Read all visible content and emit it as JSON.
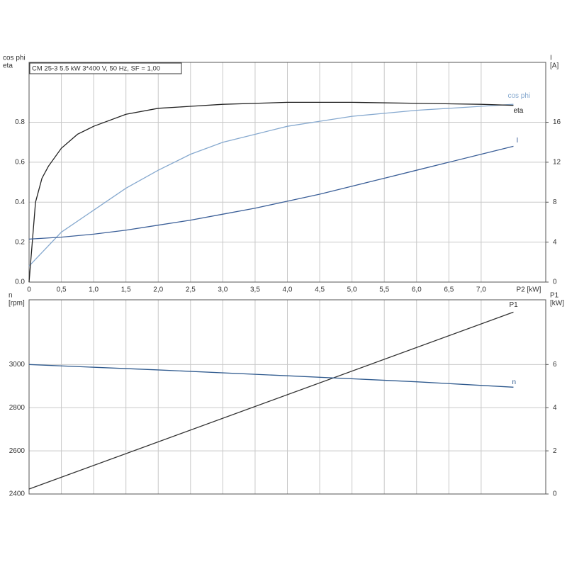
{
  "chart_data": [
    {
      "type": "line",
      "annotation": "CM 25-3   5.5 kW   3*400 V, 50 Hz, SF = 1,00",
      "ylabel_lines": [
        "cos phi",
        "eta"
      ],
      "y2label_lines": [
        "I",
        "[A]"
      ],
      "xlabel": "P2 [kW]",
      "xlim": [
        0,
        8
      ],
      "xticks": [
        {
          "value": 0,
          "label": "0"
        },
        {
          "value": 0.5,
          "label": "0,5"
        },
        {
          "value": 1,
          "label": "1,0"
        },
        {
          "value": 1.5,
          "label": "1,5"
        },
        {
          "value": 2,
          "label": "2,0"
        },
        {
          "value": 2.5,
          "label": "2,5"
        },
        {
          "value": 3,
          "label": "3,0"
        },
        {
          "value": 3.5,
          "label": "3,5"
        },
        {
          "value": 4,
          "label": "4,0"
        },
        {
          "value": 4.5,
          "label": "4,5"
        },
        {
          "value": 5,
          "label": "5,0"
        },
        {
          "value": 5.5,
          "label": "5,5"
        },
        {
          "value": 6,
          "label": "6,0"
        },
        {
          "value": 6.5,
          "label": "6,5"
        },
        {
          "value": 7,
          "label": "7,0"
        }
      ],
      "ylim": [
        0,
        1.1
      ],
      "yticks": [
        {
          "value": 0,
          "label": "0.0"
        },
        0.2,
        0.4,
        0.6,
        0.8
      ],
      "y2lim": [
        0,
        22
      ],
      "y2ticks": [
        0,
        4,
        8,
        12,
        16
      ],
      "grid": true,
      "series": [
        {
          "name": "cos phi",
          "color": "#86a9cf",
          "x": [
            0,
            0.5,
            1,
            1.5,
            2,
            2.5,
            3,
            3.5,
            4,
            4.5,
            5,
            5.5,
            6,
            6.5,
            7,
            7.5
          ],
          "values": [
            0.08,
            0.25,
            0.36,
            0.47,
            0.56,
            0.64,
            0.7,
            0.74,
            0.78,
            0.805,
            0.83,
            0.845,
            0.86,
            0.87,
            0.88,
            0.89
          ]
        },
        {
          "name": "eta",
          "color": "#222222",
          "x": [
            0,
            0.1,
            0.2,
            0.3,
            0.5,
            0.75,
            1,
            1.5,
            2,
            2.5,
            3,
            4,
            5,
            6,
            7,
            7.5
          ],
          "values": [
            0,
            0.4,
            0.52,
            0.58,
            0.67,
            0.74,
            0.78,
            0.84,
            0.87,
            0.88,
            0.89,
            0.9,
            0.9,
            0.895,
            0.89,
            0.885
          ]
        },
        {
          "name": "I",
          "color": "#3b5f98",
          "axis": "y2",
          "x": [
            0,
            0.5,
            1,
            1.5,
            2,
            2.5,
            3,
            3.5,
            4,
            4.5,
            5,
            5.5,
            6,
            6.5,
            7,
            7.5
          ],
          "values": [
            4.3,
            4.5,
            4.8,
            5.2,
            5.7,
            6.2,
            6.8,
            7.4,
            8.1,
            8.8,
            9.6,
            10.4,
            11.2,
            12,
            12.8,
            13.6
          ]
        }
      ]
    },
    {
      "type": "line",
      "ylabel_lines": [
        "n",
        "[rpm]"
      ],
      "y2label_lines": [
        "P1",
        "[kW]"
      ],
      "xlim": [
        0,
        8
      ],
      "ylim": [
        2400,
        3300
      ],
      "yticks": [
        2400,
        2600,
        2800,
        3000
      ],
      "y2lim": [
        0,
        9
      ],
      "y2ticks": [
        0,
        2,
        4,
        6
      ],
      "grid": true,
      "series": [
        {
          "name": "P1",
          "color": "#333333",
          "axis": "y2",
          "x": [
            0,
            7.5
          ],
          "values": [
            0.23,
            8.43
          ]
        },
        {
          "name": "n",
          "color": "#2f5a8e",
          "x": [
            0,
            2,
            4,
            6,
            7.5
          ],
          "values": [
            3000,
            2975,
            2948,
            2920,
            2895
          ]
        }
      ]
    }
  ]
}
